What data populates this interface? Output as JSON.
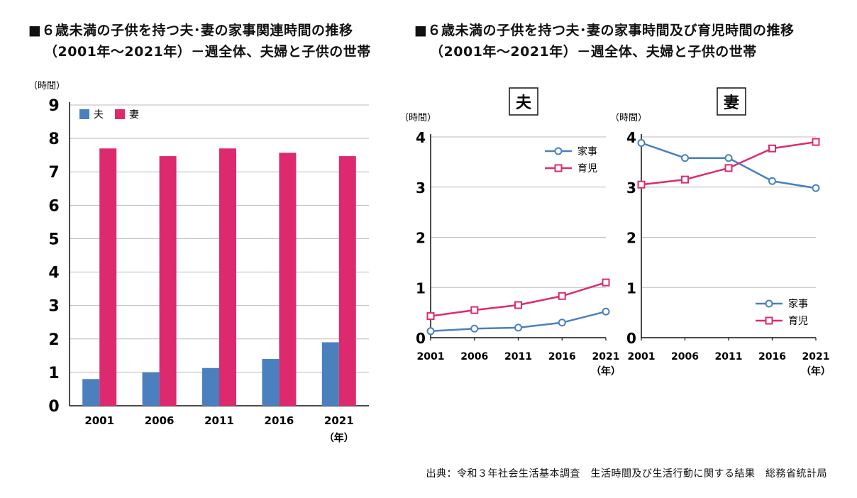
{
  "left_title": {
    "line1": "■６歳未満の子供を持つ夫･妻の家事関連時間の推移",
    "line2": "（2001年～2021年）－週全体、夫婦と子供の世帯"
  },
  "right_title": {
    "line1": "■６歳未満の子供を持つ夫･妻の家事時間及び育児時間の推移",
    "line2": "（2001年～2021年）－週全体、夫婦と子供の世帯"
  },
  "source": "出典：令和３年社会生活基本調査　生活時間及び生活行動に関する結果　総務省統計局",
  "chart_data": [
    {
      "type": "bar",
      "title": "６歳未満の子供を持つ夫･妻の家事関連時間の推移",
      "ylabel": "（時間）",
      "xunit": "（年）",
      "categories": [
        "2001",
        "2006",
        "2011",
        "2016",
        "2021"
      ],
      "yticks": [
        "0",
        "1",
        "2",
        "3",
        "4",
        "5",
        "6",
        "7",
        "8",
        "9"
      ],
      "ylim": [
        0,
        9
      ],
      "series": [
        {
          "name": "夫",
          "color": "#4a80bd",
          "values": [
            0.8,
            1.0,
            1.13,
            1.4,
            1.9
          ]
        },
        {
          "name": "妻",
          "color": "#dd2a6f",
          "values": [
            7.7,
            7.47,
            7.7,
            7.57,
            7.47
          ]
        }
      ]
    },
    {
      "type": "line",
      "panel": "夫",
      "ylabel": "（時間）",
      "xunit": "（年）",
      "categories": [
        "2001",
        "2006",
        "2011",
        "2016",
        "2021"
      ],
      "yticks": [
        "0",
        "1",
        "2",
        "3",
        "4"
      ],
      "ylim": [
        0,
        4
      ],
      "series": [
        {
          "name": "家事",
          "color": "#4a80bd",
          "marker": "circle",
          "values": [
            0.13,
            0.18,
            0.2,
            0.3,
            0.52
          ]
        },
        {
          "name": "育児",
          "color": "#dd2a6f",
          "marker": "square",
          "values": [
            0.43,
            0.55,
            0.65,
            0.83,
            1.1
          ]
        }
      ]
    },
    {
      "type": "line",
      "panel": "妻",
      "ylabel": "（時間）",
      "xunit": "（年）",
      "categories": [
        "2001",
        "2006",
        "2011",
        "2016",
        "2021"
      ],
      "yticks": [
        "0",
        "1",
        "2",
        "3",
        "4"
      ],
      "ylim": [
        0,
        4
      ],
      "series": [
        {
          "name": "家事",
          "color": "#4a80bd",
          "marker": "circle",
          "values": [
            3.88,
            3.58,
            3.58,
            3.12,
            2.98
          ]
        },
        {
          "name": "育児",
          "color": "#dd2a6f",
          "marker": "square",
          "values": [
            3.05,
            3.15,
            3.38,
            3.77,
            3.9
          ]
        }
      ]
    }
  ]
}
